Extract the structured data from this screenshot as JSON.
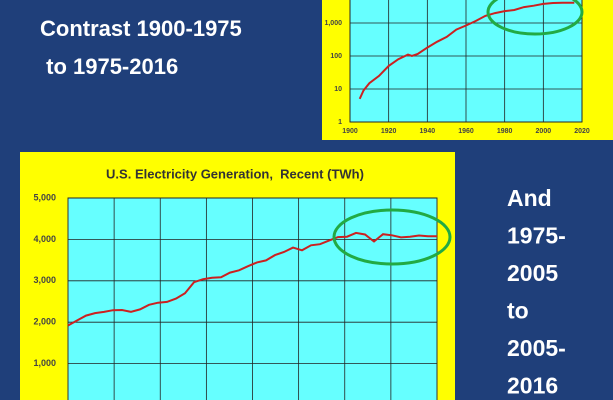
{
  "slide": {
    "heading": [
      "Contrast 1900-1975",
      " to 1975-2016"
    ],
    "side_text": [
      "And",
      "1975-",
      "2005",
      "to",
      "2005-",
      "2016"
    ]
  },
  "chart_data": [
    {
      "type": "line",
      "log_y": true,
      "grid": true,
      "color": "#cc2020",
      "x": [
        1905,
        1907,
        1910,
        1915,
        1920,
        1925,
        1930,
        1932,
        1935,
        1940,
        1945,
        1950,
        1955,
        1960,
        1965,
        1970,
        1975,
        1980,
        1985,
        1990,
        1995,
        2000,
        2005,
        2010,
        2016
      ],
      "values": [
        5,
        9,
        15,
        25,
        50,
        80,
        110,
        100,
        115,
        180,
        270,
        380,
        630,
        840,
        1150,
        1640,
        2000,
        2290,
        2470,
        3040,
        3350,
        3800,
        4050,
        4125,
        4080
      ],
      "xlim": [
        1900,
        2020
      ],
      "xticks": [
        1900,
        1920,
        1940,
        1960,
        1980,
        2000,
        2020
      ],
      "ylim": [
        1,
        10000
      ],
      "yticks": [
        1,
        10,
        100,
        {
          "value": 1000,
          "label": "1,000"
        }
      ]
    },
    {
      "type": "line",
      "title": "U.S. Electricity Generation,  Recent (TWh)",
      "grid": true,
      "color": "#cc2020",
      "x": [
        1975,
        1976,
        1977,
        1978,
        1979,
        1980,
        1981,
        1982,
        1983,
        1984,
        1985,
        1986,
        1987,
        1988,
        1989,
        1990,
        1991,
        1992,
        1993,
        1994,
        1995,
        1996,
        1997,
        1998,
        1999,
        2000,
        2001,
        2002,
        2003,
        2004,
        2005,
        2006,
        2007,
        2008,
        2009,
        2010,
        2011,
        2012,
        2013,
        2014,
        2015,
        2016
      ],
      "values": [
        1920,
        2040,
        2160,
        2220,
        2250,
        2290,
        2295,
        2250,
        2310,
        2420,
        2470,
        2490,
        2570,
        2700,
        2967,
        3038,
        3073,
        3084,
        3197,
        3254,
        3353,
        3444,
        3492,
        3620,
        3695,
        3802,
        3737,
        3858,
        3883,
        3971,
        4055,
        4065,
        4157,
        4119,
        3950,
        4125,
        4100,
        4048,
        4066,
        4094,
        4078,
        4077
      ],
      "xlim": [
        1975,
        2016
      ],
      "ylim": [
        0,
        5000
      ],
      "yticks": [
        {
          "value": 1000,
          "label": "1,000"
        },
        {
          "value": 2000,
          "label": "2,000"
        },
        {
          "value": 3000,
          "label": "3,000"
        },
        {
          "value": 4000,
          "label": "4,000"
        },
        {
          "value": 5000,
          "label": "5,000"
        }
      ]
    }
  ]
}
